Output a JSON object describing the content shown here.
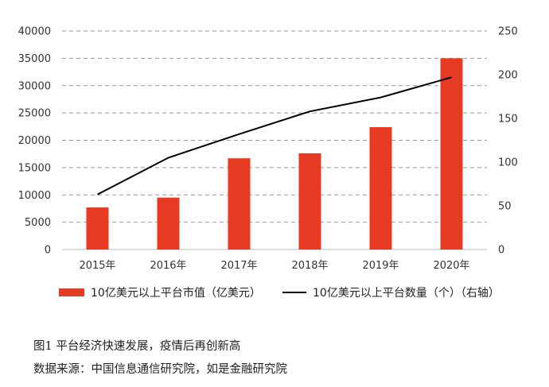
{
  "chart_data": {
    "type": "bar",
    "categories": [
      "2015年",
      "2016年",
      "2017年",
      "2018年",
      "2019年",
      "2020年"
    ],
    "series": [
      {
        "name": "10亿美元以上平台市值（亿美元）",
        "type": "bar",
        "axis": "left",
        "values": [
          7700,
          9500,
          16700,
          17600,
          22400,
          35000
        ]
      },
      {
        "name": "10亿美元以上平台数量（个）（右轴）",
        "type": "line",
        "axis": "right",
        "values": [
          63,
          105,
          132,
          158,
          174,
          197
        ]
      }
    ],
    "y_left": {
      "ticks": [
        0,
        5000,
        10000,
        15000,
        20000,
        25000,
        30000,
        35000,
        40000
      ],
      "range": [
        0,
        40000
      ]
    },
    "y_right": {
      "ticks": [
        0,
        50,
        100,
        150,
        200,
        250
      ],
      "range": [
        0,
        250
      ]
    },
    "grid": "dashed-horizontal",
    "legend_position": "bottom",
    "colors": {
      "bar": "#e63a22",
      "line": "#000000",
      "grid": "#999999"
    }
  },
  "legend": {
    "bar_label": "10亿美元以上平台市值（亿美元）",
    "line_label": "10亿美元以上平台数量（个）（右轴）"
  },
  "caption": {
    "title": "图1  平台经济快速发展，疫情后再创新高",
    "source": "数据来源：中国信息通信研究院，如是金融研究院"
  }
}
